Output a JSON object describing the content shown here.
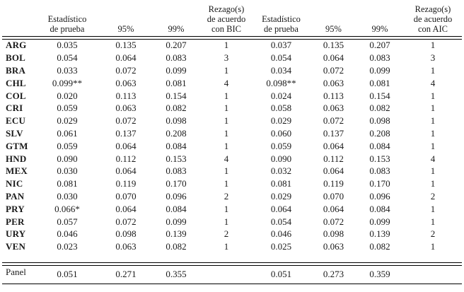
{
  "table": {
    "header": {
      "cols": [
        "",
        "Estadístico\nde prueba",
        "95%",
        "99%",
        "Rezago(s)\nde acuerdo\ncon BIC",
        "Estadístico\nde prueba",
        "95%",
        "99%",
        "Rezago(s)\nde acuerdo\ncon AIC"
      ]
    },
    "rows": [
      {
        "country": "ARG",
        "values": [
          "0.035",
          "0.135",
          "0.207",
          "1",
          "0.037",
          "0.135",
          "0.207",
          "1"
        ]
      },
      {
        "country": "BOL",
        "values": [
          "0.054",
          "0.064",
          "0.083",
          "3",
          "0.054",
          "0.064",
          "0.083",
          "3"
        ]
      },
      {
        "country": "BRA",
        "values": [
          "0.033",
          "0.072",
          "0.099",
          "1",
          "0.034",
          "0.072",
          "0.099",
          "1"
        ]
      },
      {
        "country": "CHL",
        "values": [
          "0.099**",
          "0.063",
          "0.081",
          "4",
          "0.098**",
          "0.063",
          "0.081",
          "4"
        ]
      },
      {
        "country": "COL",
        "values": [
          "0.020",
          "0.113",
          "0.154",
          "1",
          "0.024",
          "0.113",
          "0.154",
          "1"
        ]
      },
      {
        "country": "CRI",
        "values": [
          "0.059",
          "0.063",
          "0.082",
          "1",
          "0.058",
          "0.063",
          "0.082",
          "1"
        ]
      },
      {
        "country": "ECU",
        "values": [
          "0.029",
          "0.072",
          "0.098",
          "1",
          "0.029",
          "0.072",
          "0.098",
          "1"
        ]
      },
      {
        "country": "SLV",
        "values": [
          "0.061",
          "0.137",
          "0.208",
          "1",
          "0.060",
          "0.137",
          "0.208",
          "1"
        ]
      },
      {
        "country": "GTM",
        "values": [
          "0.059",
          "0.064",
          "0.084",
          "1",
          "0.059",
          "0.064",
          "0.084",
          "1"
        ]
      },
      {
        "country": "HND",
        "values": [
          "0.090",
          "0.112",
          "0.153",
          "4",
          "0.090",
          "0.112",
          "0.153",
          "4"
        ]
      },
      {
        "country": "MEX",
        "values": [
          "0.030",
          "0.064",
          "0.083",
          "1",
          "0.032",
          "0.064",
          "0.083",
          "1"
        ]
      },
      {
        "country": "NIC",
        "values": [
          "0.081",
          "0.119",
          "0.170",
          "1",
          "0.081",
          "0.119",
          "0.170",
          "1"
        ]
      },
      {
        "country": "PAN",
        "values": [
          "0.030",
          "0.070",
          "0.096",
          "2",
          "0.029",
          "0.070",
          "0.096",
          "2"
        ]
      },
      {
        "country": "PRY",
        "values": [
          "0.066*",
          "0.064",
          "0.084",
          "1",
          "0.064",
          "0.064",
          "0.084",
          "1"
        ]
      },
      {
        "country": "PER",
        "values": [
          "0.057",
          "0.072",
          "0.099",
          "1",
          "0.054",
          "0.072",
          "0.099",
          "1"
        ]
      },
      {
        "country": "URY",
        "values": [
          "0.046",
          "0.098",
          "0.139",
          "2",
          "0.046",
          "0.098",
          "0.139",
          "2"
        ]
      },
      {
        "country": "VEN",
        "values": [
          "0.023",
          "0.063",
          "0.082",
          "1",
          "0.025",
          "0.063",
          "0.082",
          "1"
        ]
      }
    ],
    "panel": {
      "label": "Panel",
      "values": [
        "0.051",
        "0.271",
        "0.355",
        "",
        "0.051",
        "0.273",
        "0.359",
        ""
      ]
    }
  }
}
